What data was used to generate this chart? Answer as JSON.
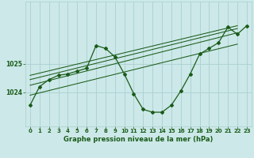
{
  "title": "Graphe pression niveau de la mer (hPa)",
  "bg_color": "#cce8e8",
  "plot_bg_color": "#cce8e8",
  "line_color": "#1a5c1a",
  "grid_color": "#aacfcf",
  "text_color": "#1a5c1a",
  "xlim": [
    -0.5,
    23.5
  ],
  "ylim": [
    1022.8,
    1027.2
  ],
  "yticks": [
    1024,
    1025
  ],
  "xticks": [
    0,
    1,
    2,
    3,
    4,
    5,
    6,
    7,
    8,
    9,
    10,
    11,
    12,
    13,
    14,
    15,
    16,
    17,
    18,
    19,
    20,
    21,
    22,
    23
  ],
  "main_series": [
    1023.55,
    1024.2,
    1024.45,
    1024.6,
    1024.65,
    1024.75,
    1024.85,
    1025.65,
    1025.55,
    1025.25,
    1024.65,
    1023.95,
    1023.4,
    1023.3,
    1023.3,
    1023.55,
    1024.05,
    1024.65,
    1025.35,
    1025.55,
    1025.75,
    1026.3,
    1026.05,
    1026.35
  ],
  "trend_lines": [
    [
      [
        0,
        1024.6
      ],
      [
        22,
        1026.35
      ]
    ],
    [
      [
        0,
        1024.45
      ],
      [
        22,
        1026.25
      ]
    ],
    [
      [
        0,
        1024.25
      ],
      [
        22,
        1026.1
      ]
    ],
    [
      [
        0,
        1023.9
      ],
      [
        22,
        1025.7
      ]
    ]
  ]
}
